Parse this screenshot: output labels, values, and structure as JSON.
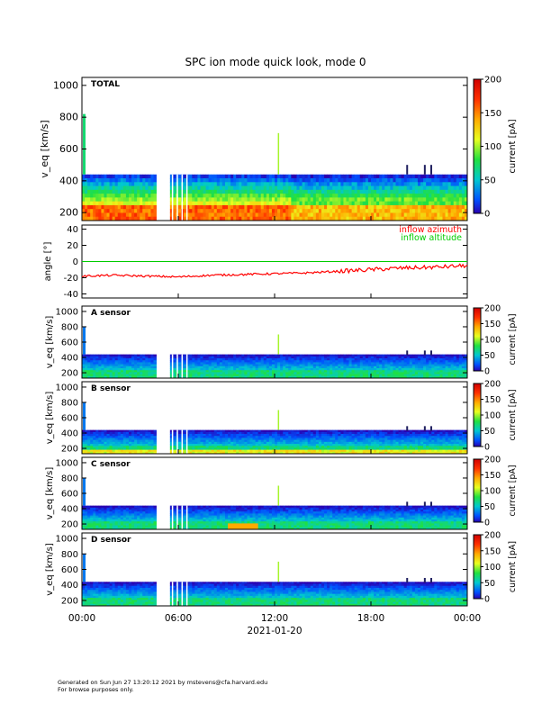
{
  "title": "SPC ion mode quick look, mode 0",
  "footer": {
    "line1": "Generated on Sun Jun 27 13:20:12 2021 by mstevens@cfa.harvard.edu",
    "line2": "For browse purposes only."
  },
  "chart_data": [
    {
      "type": "heatmap",
      "panel": "TOTAL",
      "label": "TOTAL",
      "ylabel": "v_eq [km/s]",
      "ylim": [
        150,
        1050
      ],
      "yticks": [
        200,
        400,
        600,
        800,
        1000
      ],
      "colorbar": {
        "label": "current [pA]",
        "range": [
          0,
          200
        ],
        "ticks": [
          0,
          50,
          100,
          150,
          200
        ]
      },
      "data_upper_v": 440,
      "core_band_v": [
        170,
        260
      ],
      "core_current_pA": 150
    },
    {
      "type": "line",
      "panel": "angle",
      "ylabel": "angle [°]",
      "ylim": [
        -45,
        45
      ],
      "yticks": [
        -40,
        -20,
        0,
        20,
        40
      ],
      "legend_position": "top-right",
      "series": [
        {
          "name": "inflow azimuth",
          "color": "#ff0000",
          "x": [
            "00:00",
            "02:00",
            "04:00",
            "06:00",
            "08:00",
            "10:00",
            "12:00",
            "14:00",
            "16:00",
            "18:00",
            "20:00",
            "22:00",
            "24:00"
          ],
          "values": [
            -18,
            -17,
            -18,
            -19,
            -17,
            -16,
            -15,
            -14,
            -12,
            -10,
            -8,
            -7,
            -5
          ]
        },
        {
          "name": "inflow altitude",
          "color": "#00cc00",
          "x": [
            "00:00",
            "06:00",
            "12:00",
            "18:00",
            "24:00"
          ],
          "values": [
            0,
            0,
            0,
            0,
            0
          ]
        }
      ]
    },
    {
      "type": "heatmap",
      "panel": "A",
      "label": "A sensor",
      "ylabel": "v_eq [km/s]",
      "ylim": [
        130,
        1070
      ],
      "yticks": [
        200,
        400,
        600,
        800,
        1000
      ],
      "colorbar": {
        "label": "current [pA]",
        "range": [
          0,
          200
        ],
        "ticks": [
          0,
          50,
          100,
          150,
          200
        ]
      }
    },
    {
      "type": "heatmap",
      "panel": "B",
      "label": "B sensor",
      "ylabel": "v_eq [km/s]",
      "ylim": [
        130,
        1070
      ],
      "yticks": [
        200,
        400,
        600,
        800,
        1000
      ],
      "colorbar": {
        "label": "current [pA]",
        "range": [
          0,
          200
        ],
        "ticks": [
          0,
          50,
          100,
          150,
          200
        ]
      }
    },
    {
      "type": "heatmap",
      "panel": "C",
      "label": "C sensor",
      "ylabel": "v_eq [km/s]",
      "ylim": [
        130,
        1070
      ],
      "yticks": [
        200,
        400,
        600,
        800,
        1000
      ],
      "colorbar": {
        "label": "current [pA]",
        "range": [
          0,
          200
        ],
        "ticks": [
          0,
          50,
          100,
          150,
          200
        ]
      }
    },
    {
      "type": "heatmap",
      "panel": "D",
      "label": "D sensor",
      "ylabel": "v_eq [km/s]",
      "ylim": [
        130,
        1070
      ],
      "yticks": [
        200,
        400,
        600,
        800,
        1000
      ],
      "colorbar": {
        "label": "current [pA]",
        "range": [
          0,
          200
        ],
        "ticks": [
          0,
          50,
          100,
          150,
          200
        ]
      }
    }
  ],
  "x_axis": {
    "date_label": "2021-01-20",
    "tick_labels": [
      "00:00",
      "06:00",
      "12:00",
      "18:00",
      "00:00"
    ],
    "range_hours": [
      0,
      24
    ],
    "data_gap_hours": [
      4.7,
      5.5
    ]
  }
}
